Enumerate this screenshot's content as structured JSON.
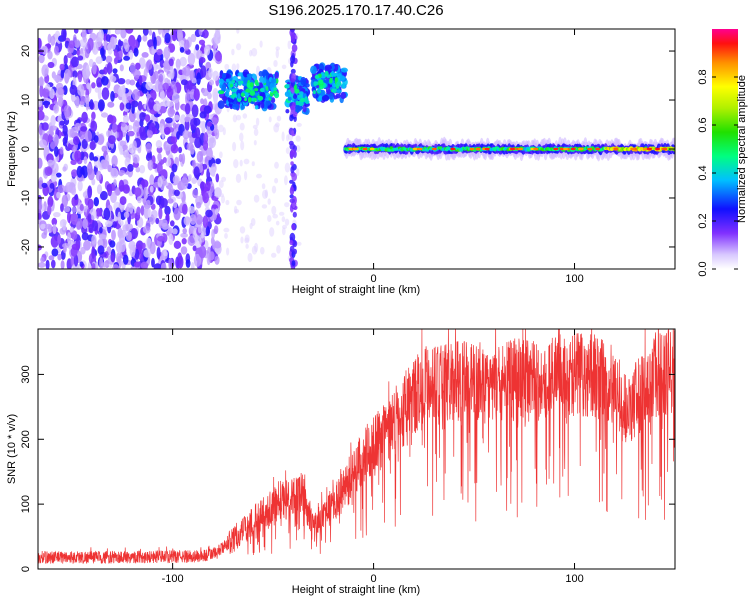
{
  "title": "S196.2025.170.17.40.C26",
  "chart_data": [
    {
      "type": "heatmap",
      "xlabel": "Height of straight line (km)",
      "ylabel": "Frequency (Hz)",
      "xlim": [
        -167,
        150
      ],
      "ylim": [
        -24.5,
        24.5
      ],
      "x_ticks": [
        -100,
        0,
        100
      ],
      "y_ticks": [
        -20,
        -10,
        0,
        10,
        20
      ],
      "colorbar": {
        "label": "Normalized spectral amplitude",
        "range": [
          0,
          1
        ],
        "ticks": [
          0.0,
          0.2,
          0.4,
          0.6,
          0.8
        ]
      },
      "features": [
        {
          "name": "noise",
          "x_range": [
            -167,
            -77
          ],
          "freq_range": [
            -24.5,
            24.5
          ]
        },
        {
          "name": "blob",
          "x_range": [
            -76,
            -48
          ],
          "freq_center": 12
        },
        {
          "name": "blob",
          "x_range": [
            -44,
            -33
          ],
          "freq_center": 11
        },
        {
          "name": "blob",
          "x_range": [
            -30,
            -14
          ],
          "freq_center": 13.5
        },
        {
          "name": "vertical streak",
          "x": -40,
          "freq_range": [
            -24.5,
            24.5
          ]
        },
        {
          "name": "carrier",
          "x_range": [
            -14,
            150
          ],
          "freq_center": 0
        }
      ]
    },
    {
      "type": "line",
      "xlabel": "Height of straight line (km)",
      "ylabel": "SNR (10 * v/v)",
      "xlim": [
        -167,
        150
      ],
      "ylim": [
        0,
        370
      ],
      "x_ticks": [
        -100,
        0,
        100
      ],
      "y_ticks": [
        0,
        100,
        200,
        300
      ],
      "series": [
        {
          "color": "#ee3333",
          "x": [
            -167,
            -150,
            -130,
            -110,
            -95,
            -85,
            -78,
            -70,
            -60,
            -50,
            -45,
            -40,
            -35,
            -30,
            -25,
            -20,
            -15,
            -10,
            -5,
            0,
            5,
            10,
            15,
            20,
            25,
            30,
            40,
            50,
            60,
            70,
            80,
            90,
            100,
            110,
            120,
            125,
            130,
            140,
            150
          ],
          "values": [
            18,
            18,
            18,
            19,
            19,
            20,
            25,
            45,
            75,
            95,
            105,
            112,
            118,
            60,
            85,
            100,
            120,
            150,
            175,
            190,
            205,
            225,
            245,
            265,
            280,
            288,
            290,
            285,
            290,
            292,
            290,
            295,
            300,
            298,
            280,
            245,
            260,
            300,
            305
          ]
        }
      ]
    }
  ]
}
